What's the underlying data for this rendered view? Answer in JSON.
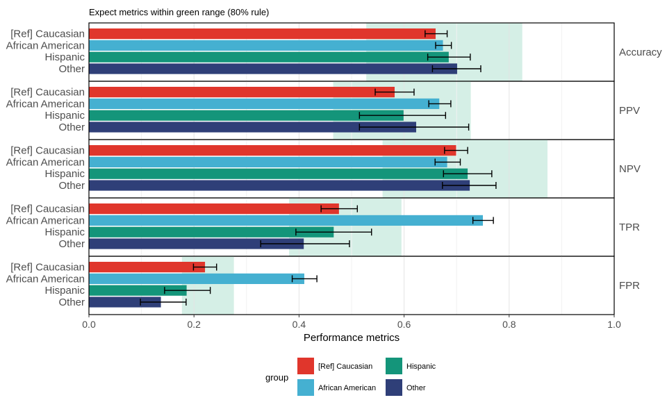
{
  "chart_data": {
    "type": "bar",
    "orientation": "horizontal",
    "subtitle": "Expect metrics within green range (80% rule)",
    "xlabel": "Performance metrics",
    "xlim": [
      0,
      1
    ],
    "xticks": [
      "0.0",
      "0.2",
      "0.4",
      "0.6",
      "0.8",
      "1.0"
    ],
    "grid": true,
    "categories": [
      "[Ref] Caucasian",
      "African American",
      "Hispanic",
      "Other"
    ],
    "colors": {
      "[Ref] Caucasian": "#E0362C",
      "African American": "#45B0D1",
      "Hispanic": "#14957A",
      "Other": "#2F3F78",
      "green_range": "#D5EFE6"
    },
    "panels": [
      {
        "metric": "Accuracy",
        "green_range": [
          0.528,
          0.825
        ],
        "values": [
          0.66,
          0.674,
          0.685,
          0.701
        ],
        "error": [
          [
            0.64,
            0.682
          ],
          [
            0.66,
            0.69
          ],
          [
            0.645,
            0.726
          ],
          [
            0.654,
            0.746
          ]
        ]
      },
      {
        "metric": "PPV",
        "green_range": [
          0.465,
          0.727
        ],
        "values": [
          0.582,
          0.667,
          0.599,
          0.623
        ],
        "error": [
          [
            0.545,
            0.619
          ],
          [
            0.647,
            0.689
          ],
          [
            0.515,
            0.679
          ],
          [
            0.515,
            0.723
          ]
        ]
      },
      {
        "metric": "NPV",
        "green_range": [
          0.559,
          0.873
        ],
        "values": [
          0.699,
          0.682,
          0.721,
          0.725
        ],
        "error": [
          [
            0.677,
            0.721
          ],
          [
            0.659,
            0.707
          ],
          [
            0.675,
            0.767
          ],
          [
            0.673,
            0.775
          ]
        ]
      },
      {
        "metric": "TPR",
        "green_range": [
          0.381,
          0.595
        ],
        "values": [
          0.476,
          0.75,
          0.466,
          0.409
        ],
        "error": [
          [
            0.442,
            0.511
          ],
          [
            0.731,
            0.77
          ],
          [
            0.394,
            0.538
          ],
          [
            0.327,
            0.496
          ]
        ]
      },
      {
        "metric": "FPR",
        "green_range": [
          0.177,
          0.276
        ],
        "values": [
          0.221,
          0.41,
          0.186,
          0.137
        ],
        "error": [
          [
            0.199,
            0.243
          ],
          [
            0.387,
            0.434
          ],
          [
            0.144,
            0.231
          ],
          [
            0.098,
            0.185
          ]
        ]
      }
    ],
    "legend": {
      "title": "group",
      "position": "bottom",
      "entries": [
        "[Ref] Caucasian",
        "African American",
        "Hispanic",
        "Other"
      ]
    }
  }
}
